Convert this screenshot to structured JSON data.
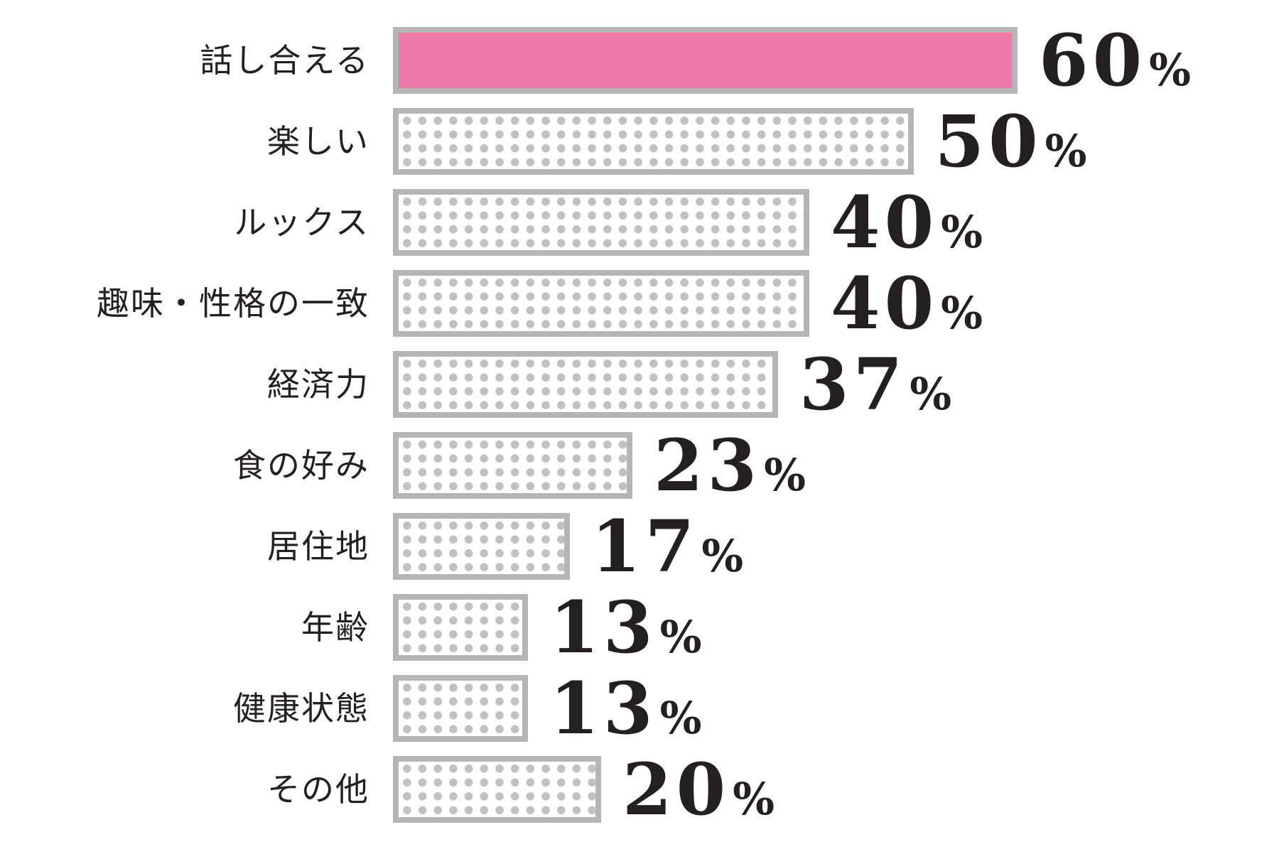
{
  "chart_data": {
    "type": "bar",
    "orientation": "horizontal",
    "title": "",
    "xlabel": "",
    "ylabel": "",
    "unit": "%",
    "xlim": [
      0,
      60
    ],
    "grid": false,
    "legend": "none",
    "categories": [
      "話し合える",
      "楽しい",
      "ルックス",
      "趣味・性格の一致",
      "経済力",
      "食の好み",
      "居住地",
      "年齢",
      "健康状態",
      "その他"
    ],
    "values": [
      60,
      50,
      40,
      40,
      37,
      23,
      17,
      13,
      13,
      20
    ],
    "value_labels": [
      "60%",
      "50%",
      "40%",
      "40%",
      "37%",
      "23%",
      "17%",
      "13%",
      "13%",
      "20%"
    ],
    "highlight_index": 0,
    "bar_styles": [
      "solid-pink",
      "dotted",
      "dotted",
      "dotted",
      "dotted",
      "dotted",
      "dotted",
      "dotted",
      "dotted",
      "dotted"
    ],
    "colors": {
      "highlight_bar": "#ee78ab",
      "bar_border": "#b5b5b5",
      "dot_fill": "#c1c1c1",
      "text": "#242021",
      "background": "#ffffff"
    }
  }
}
